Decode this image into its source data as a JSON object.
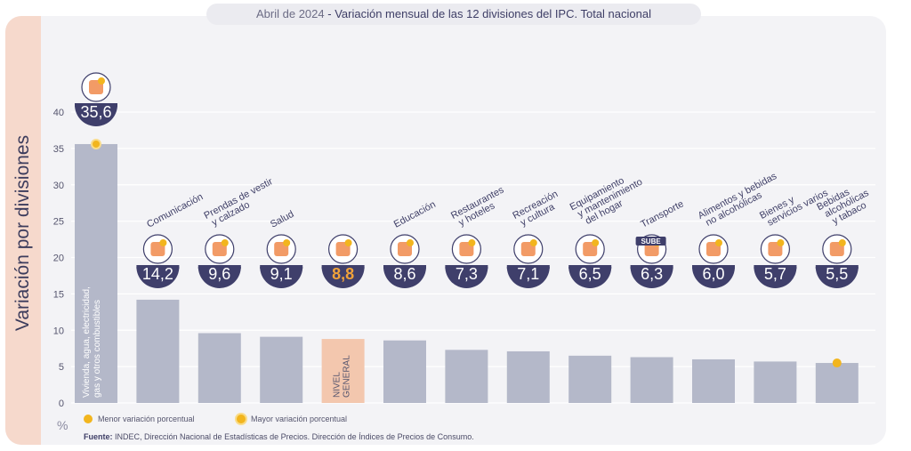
{
  "title": {
    "date": "Abril de 2024",
    "separator": " - ",
    "text": "Variación mensual de las 12 divisiones del IPC. Total nacional"
  },
  "ylabel": "Variación por divisiones",
  "unit": "%",
  "legend": {
    "min": "Menor variación porcentual",
    "max": "Mayor variación porcentual"
  },
  "source": {
    "label": "Fuente:",
    "text": "INDEC, Dirección Nacional de Estadísticas de Precios. Dirección de Índices de Precios de Consumo."
  },
  "colors": {
    "bar": "#b4b8c9",
    "general_bar": "#f3c7ae",
    "badge": "#3f3f6b",
    "general_value": "#f0a23a",
    "marker": "#f2b51e",
    "grid": "#ffffff"
  },
  "chart_data": {
    "type": "bar",
    "ylim": [
      0,
      40
    ],
    "yticks": [
      0,
      5,
      10,
      15,
      20,
      25,
      30,
      35,
      40
    ],
    "grid": true,
    "categories": [
      {
        "label": [
          "Vivienda, agua, electricidad,",
          "gas y otros combustibles"
        ],
        "value": 35.6,
        "display": "35,6",
        "icon": "house-bulb-icon",
        "label_inside": true,
        "marker": "max"
      },
      {
        "label": [
          "Comunicación"
        ],
        "value": 14.2,
        "display": "14,2",
        "icon": "smartphone-icon"
      },
      {
        "label": [
          "Prendas de vestir",
          "y calzado"
        ],
        "value": 9.6,
        "display": "9,6",
        "icon": "clothing-icon"
      },
      {
        "label": [
          "Salud"
        ],
        "value": 9.1,
        "display": "9,1",
        "icon": "health-cross-icon"
      },
      {
        "label": [
          "NIVEL",
          "GENERAL"
        ],
        "value": 8.8,
        "display": "8,8",
        "icon": "shopping-basket-icon",
        "general": true
      },
      {
        "label": [
          "Educación"
        ],
        "value": 8.6,
        "display": "8,6",
        "icon": "notebook-icon"
      },
      {
        "label": [
          "Restaurantes",
          "y hoteles"
        ],
        "value": 7.3,
        "display": "7,3",
        "icon": "cutlery-icon"
      },
      {
        "label": [
          "Recreación",
          "y cultura"
        ],
        "value": 7.1,
        "display": "7,1",
        "icon": "umbrella-sun-icon"
      },
      {
        "label": [
          "Equipamiento",
          "y mantenimiento",
          "del hogar"
        ],
        "value": 6.5,
        "display": "6,5",
        "icon": "washing-machine-icon"
      },
      {
        "label": [
          "Transporte"
        ],
        "value": 6.3,
        "display": "6,3",
        "icon": "sube-card-icon",
        "icon_text": "SUBE"
      },
      {
        "label": [
          "Alimentos y bebidas",
          "no alcohólicas"
        ],
        "value": 6.0,
        "display": "6,0",
        "icon": "chicken-icon"
      },
      {
        "label": [
          "Bienes y",
          "servicios varios"
        ],
        "value": 5.7,
        "display": "5,7",
        "icon": "comb-scissors-icon"
      },
      {
        "label": [
          "Bebidas",
          "alcohólicas",
          "y tabaco"
        ],
        "value": 5.5,
        "display": "5,5",
        "icon": "wine-bottle-icon",
        "marker": "min"
      }
    ]
  }
}
